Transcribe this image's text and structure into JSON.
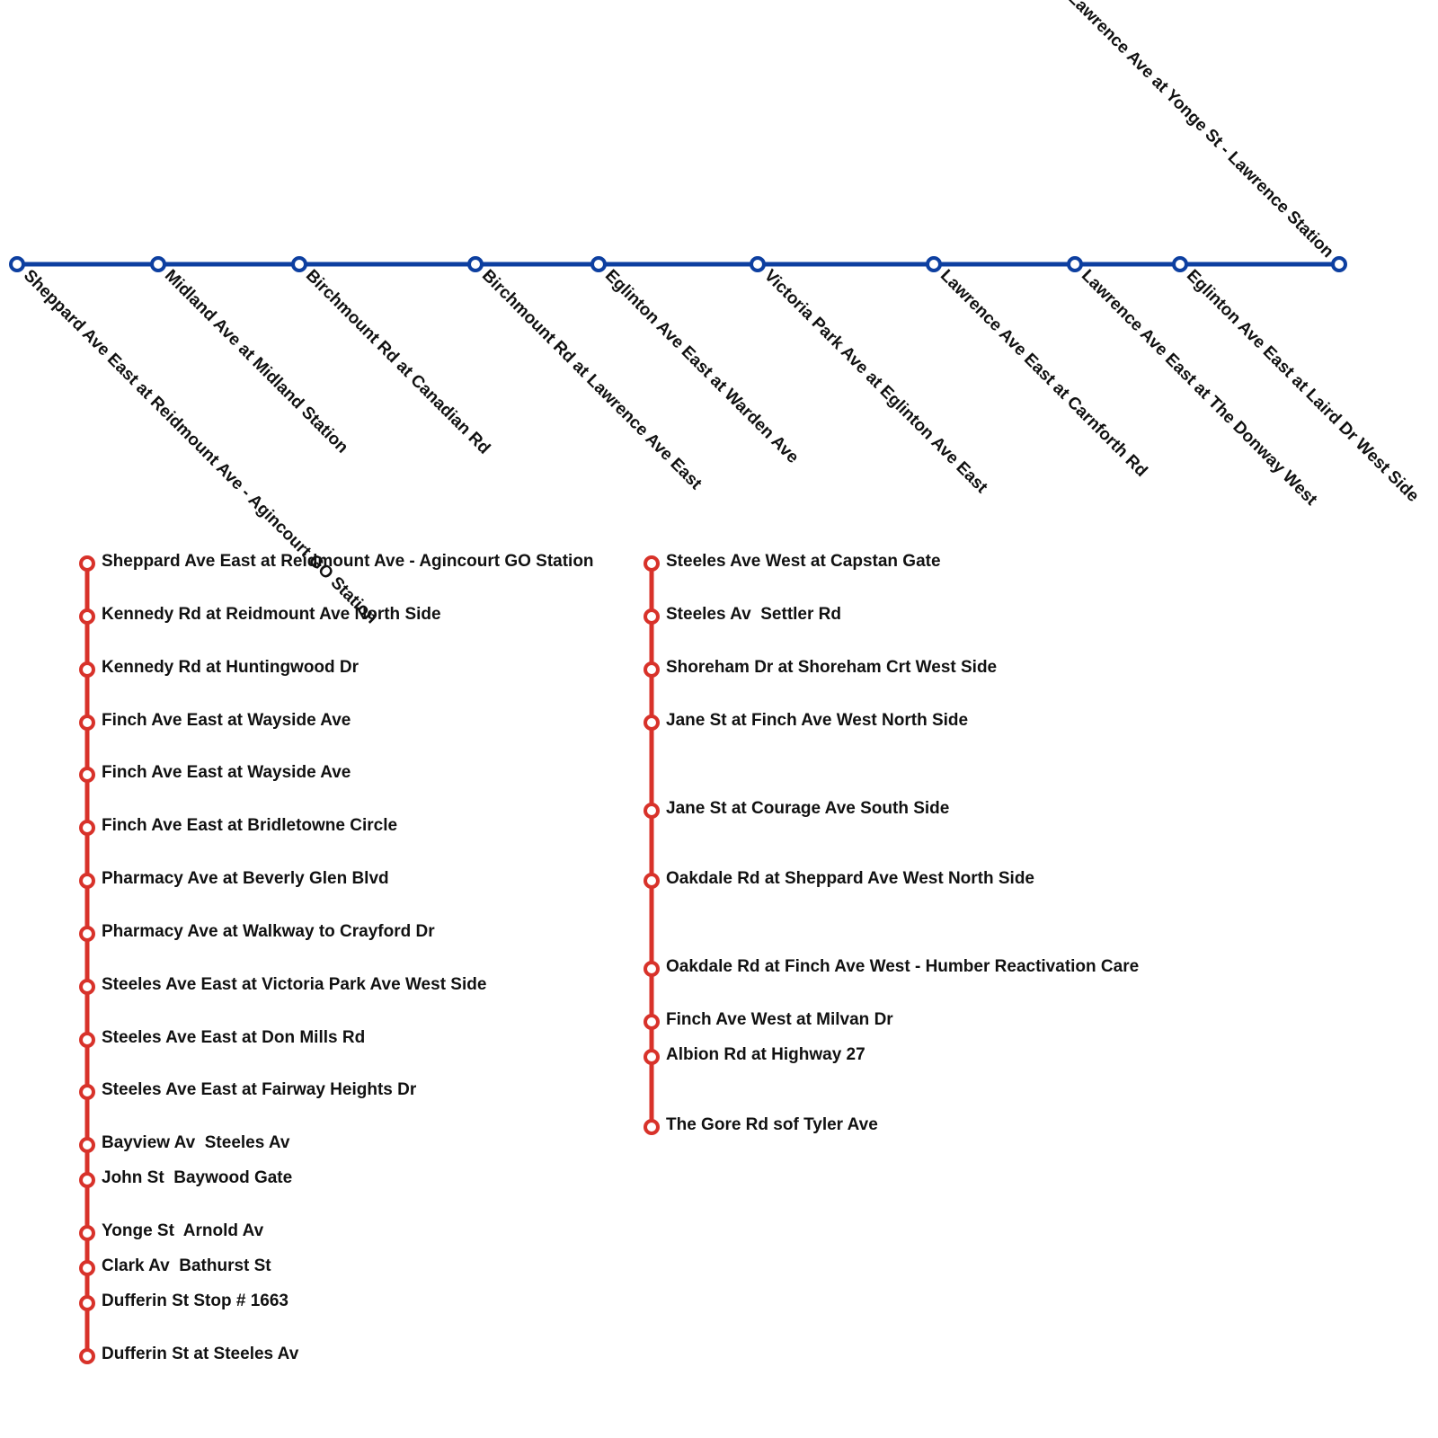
{
  "blue_line": {
    "stations": [
      "Sheppard Ave East at Reidmount Ave - Agincourt GO Station",
      "Midland Ave at Midland Station",
      "Birchmount Rd at Canadian Rd",
      "Birchmount Rd at Lawrence Ave East",
      "Eglinton Ave East at Warden Ave",
      "Victoria Park Ave at Eglinton Ave East",
      "Lawrence Ave East at Carnforth Rd",
      "Lawrence Ave East at The Donway West",
      "Eglinton Ave East at Laird Dr West Side",
      "Lawrence Ave at Yonge St - Lawrence Station"
    ]
  },
  "red_line_left": {
    "stations": [
      "Sheppard Ave East at Reidmount Ave - Agincourt GO Station",
      "Kennedy Rd at Reidmount Ave North Side",
      "Kennedy Rd at Huntingwood Dr",
      "Finch Ave East at Wayside Ave",
      "Finch Ave East at Wayside Ave",
      "Finch Ave East at Bridletowne Circle",
      "Pharmacy Ave at Beverly Glen Blvd",
      "Pharmacy Ave at Walkway to Crayford Dr",
      "Steeles Ave East at Victoria Park Ave West Side",
      "Steeles Ave East at Don Mills Rd",
      "Steeles Ave East at Fairway Heights Dr",
      "Bayview Av  Steeles Av",
      "John St  Baywood Gate",
      "Yonge St  Arnold Av",
      "Clark Av  Bathurst St",
      "Dufferin St Stop # 1663",
      "Dufferin St at Steeles Av"
    ]
  },
  "red_line_right": {
    "stations": [
      "Steeles Ave West at Capstan Gate",
      "Steeles Av  Settler Rd",
      "Shoreham Dr at Shoreham Crt West Side",
      "Jane St at Finch Ave West North Side",
      "Jane St at Courage Ave South Side",
      "Oakdale Rd at Sheppard Ave West North Side",
      "Oakdale Rd at Finch Ave West - Humber Reactivation Care",
      "Finch Ave West at Milvan Dr",
      "Albion Rd at Highway 27",
      "The Gore Rd sof Tyler Ave"
    ]
  }
}
